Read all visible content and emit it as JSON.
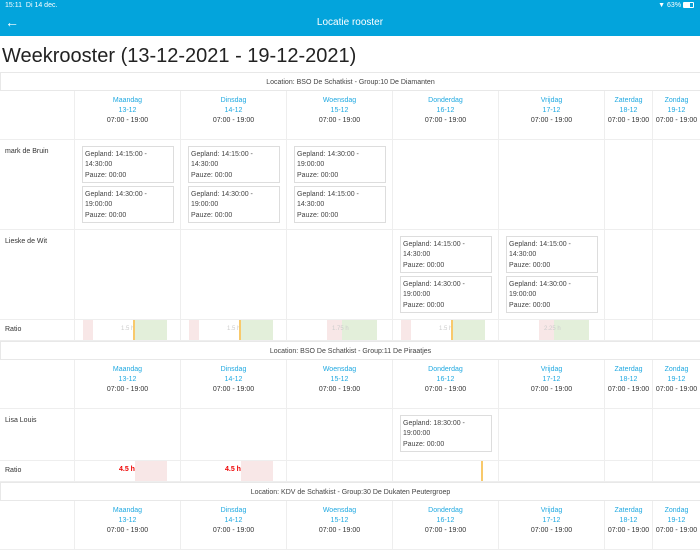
{
  "status": {
    "time": "15:11",
    "date": "Di 14 dec.",
    "battery": "63%",
    "battery_level": 0.63
  },
  "header": {
    "title": "Locatie rooster",
    "back_icon": "arrow-left-icon"
  },
  "page_title": "Weekrooster (13-12-2021 - 19-12-2021)",
  "days": [
    {
      "name": "Maandag",
      "date": "13-12",
      "hours": "07:00 - 19:00"
    },
    {
      "name": "Dinsdag",
      "date": "14-12",
      "hours": "07:00 - 19:00"
    },
    {
      "name": "Woensdag",
      "date": "15-12",
      "hours": "07:00 - 19:00"
    },
    {
      "name": "Donderdag",
      "date": "16-12",
      "hours": "07:00 - 19:00"
    },
    {
      "name": "Vrijdag",
      "date": "17-12",
      "hours": "07:00 - 19:00"
    },
    {
      "name": "Zaterdag",
      "date": "18-12",
      "hours": "07:00 - 19:00"
    },
    {
      "name": "Zondag",
      "date": "19-12",
      "hours": "07:00 - 19:00"
    }
  ],
  "ratio_label": "Ratio",
  "colors": {
    "accent": "#03a4dc",
    "day": "#20a9e1",
    "under": "#f8e7e7",
    "over": "#e3efda",
    "marker": "#f8c96b",
    "alert": "#ee0000"
  },
  "sections": [
    {
      "title": "Location: BSO De Schatkist - Group:10 De Diamanten",
      "employees": [
        {
          "name": "mark de Bruin",
          "h": 90,
          "shifts": [
            [
              {
                "gepland": "Gepland: 14:15:00 - 14:30:00",
                "pauze": "Pauze: 00:00"
              },
              {
                "gepland": "Gepland: 14:30:00 - 19:00:00",
                "pauze": "Pauze: 00:00"
              }
            ],
            [
              {
                "gepland": "Gepland: 14:15:00 - 14:30:00",
                "pauze": "Pauze: 00:00"
              },
              {
                "gepland": "Gepland: 14:30:00 - 19:00:00",
                "pauze": "Pauze: 00:00"
              }
            ],
            [
              {
                "gepland": "Gepland: 14:30:00 - 19:00:00",
                "pauze": "Pauze: 00:00"
              },
              {
                "gepland": "Gepland: 14:15:00 - 14:30:00",
                "pauze": "Pauze: 00:00"
              }
            ],
            [],
            [],
            [],
            []
          ]
        },
        {
          "name": "Lieske de Wit",
          "h": 90,
          "shifts": [
            [],
            [],
            [],
            [
              {
                "gepland": "Gepland: 14:15:00 - 14:30:00",
                "pauze": "Pauze: 00:00"
              },
              {
                "gepland": "Gepland: 14:30:00 - 19:00:00",
                "pauze": "Pauze: 00:00"
              }
            ],
            [
              {
                "gepland": "Gepland: 14:15:00 - 14:30:00",
                "pauze": "Pauze: 00:00"
              },
              {
                "gepland": "Gepland: 14:30:00 - 19:00:00",
                "pauze": "Pauze: 00:00"
              }
            ],
            [],
            []
          ]
        }
      ],
      "ratio": [
        {
          "label": "1.5 h",
          "under": true,
          "marker": true,
          "over": true
        },
        {
          "label": "1.5 h",
          "under": true,
          "marker": true,
          "over": true
        },
        {
          "label": "1.75 h",
          "under": true,
          "marker": false,
          "over": true
        },
        {
          "label": "1.5 h",
          "under": true,
          "marker": true,
          "over": true
        },
        {
          "label": "2.25 h",
          "under": true,
          "marker": false,
          "over": true
        },
        null,
        null
      ]
    },
    {
      "title": "Location: BSO De Schatkist - Group:11 De Piraatjes",
      "employees": [
        {
          "name": "Lisa Louis",
          "h": 52,
          "shifts": [
            [],
            [],
            [],
            [
              {
                "gepland": "Gepland: 18:30:00 - 19:00:00",
                "pauze": "Pauze: 00:00"
              }
            ],
            [],
            [],
            []
          ]
        }
      ],
      "ratio": [
        {
          "label": "4.5 h",
          "alert": true
        },
        {
          "label": "4.5 h",
          "alert": true
        },
        null,
        {
          "label": "",
          "marker_only": true
        },
        null,
        null,
        null
      ]
    },
    {
      "title": "Location: KDV de Schatkist - Group:30 De Dukaten Peutergroep",
      "employees": [],
      "ratio": null
    }
  ]
}
